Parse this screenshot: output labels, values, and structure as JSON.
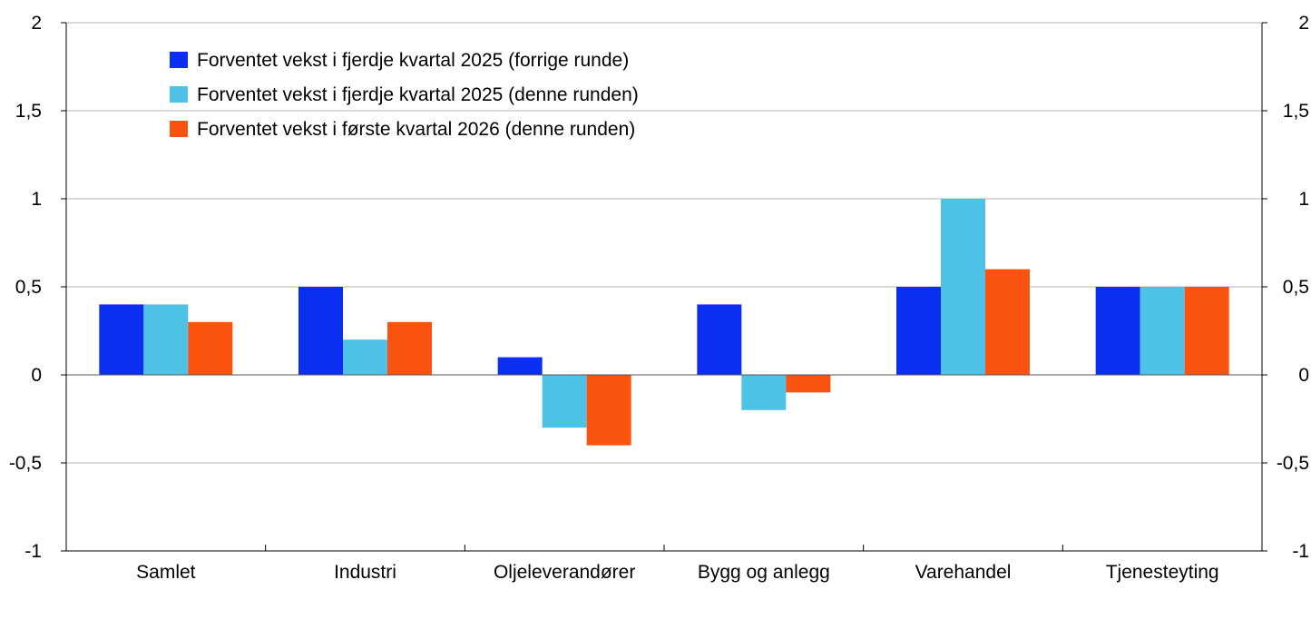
{
  "chart_data": {
    "type": "bar",
    "categories": [
      "Samlet",
      "Industri",
      "Oljeleverandører",
      "Bygg og anlegg",
      "Varehandel",
      "Tjenesteyting"
    ],
    "series": [
      {
        "name": "Forventet vekst i fjerdje kvartal 2025 (forrige runde)",
        "color": "#0a2ff0",
        "values": [
          0.4,
          0.5,
          0.1,
          0.4,
          0.5,
          0.5
        ]
      },
      {
        "name": "Forventet vekst i fjerdje kvartal 2025 (denne runden)",
        "color": "#4ec1e6",
        "values": [
          0.4,
          0.2,
          -0.3,
          -0.2,
          1.0,
          0.5
        ]
      },
      {
        "name": "Forventet vekst i første kvartal 2026 (denne runden)",
        "color": "#fa520f",
        "values": [
          0.3,
          0.3,
          -0.4,
          -0.1,
          0.6,
          0.5
        ]
      }
    ],
    "ylim": [
      -1,
      2
    ],
    "yticks": [
      -1,
      -0.5,
      0,
      0.5,
      1,
      1.5,
      2
    ],
    "ytick_labels": [
      "-1",
      "-0,5",
      "0",
      "0,5",
      "1",
      "1,5",
      "2"
    ],
    "y2tick_labels": [
      "-1",
      "-0,5",
      "0",
      "0,5",
      "1",
      "1,5",
      "2"
    ],
    "grid": true,
    "legend_position": "top-left",
    "title": "",
    "xlabel": "",
    "ylabel": ""
  }
}
